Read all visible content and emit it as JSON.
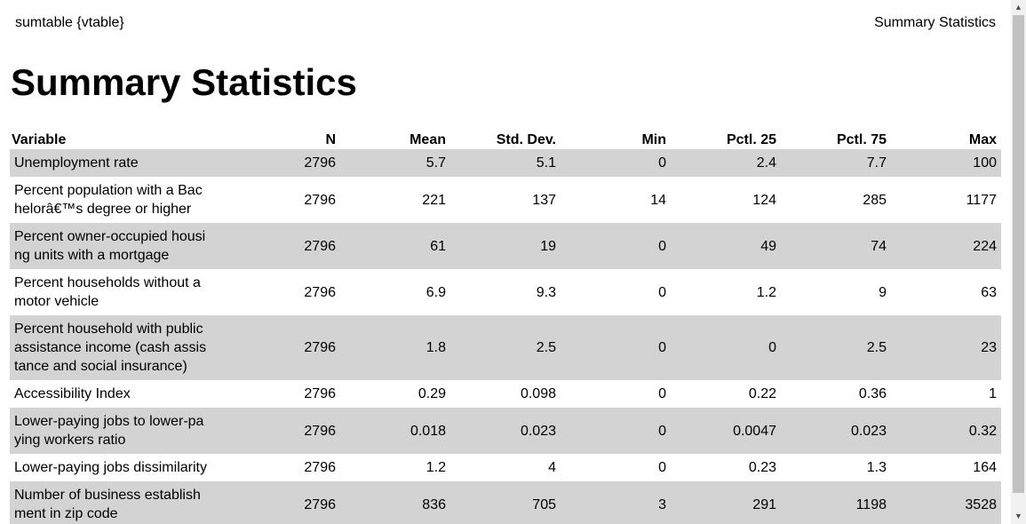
{
  "header": {
    "left_text": "sumtable {vtable}",
    "right_text": "Summary Statistics"
  },
  "page_title": "Summary Statistics",
  "table": {
    "columns": [
      "Variable",
      "N",
      "Mean",
      "Std. Dev.",
      "Min",
      "Pctl. 25",
      "Pctl. 75",
      "Max"
    ],
    "rows": [
      [
        [
          "Unemployment rate"
        ],
        "2796",
        "5.7",
        "5.1",
        "0",
        "2.4",
        "7.7",
        "100"
      ],
      [
        [
          "Percent population with a Bac",
          "helorâ€™s degree or higher"
        ],
        "2796",
        "221",
        "137",
        "14",
        "124",
        "285",
        "1177"
      ],
      [
        [
          "Percent owner-occupied housi",
          "ng units with a mortgage"
        ],
        "2796",
        "61",
        "19",
        "0",
        "49",
        "74",
        "224"
      ],
      [
        [
          "Percent households without a",
          "motor vehicle"
        ],
        "2796",
        "6.9",
        "9.3",
        "0",
        "1.2",
        "9",
        "63"
      ],
      [
        [
          "Percent household with public",
          "assistance income (cash assis",
          "tance and social insurance)"
        ],
        "2796",
        "1.8",
        "2.5",
        "0",
        "0",
        "2.5",
        "23"
      ],
      [
        [
          "Accessibility Index"
        ],
        "2796",
        "0.29",
        "0.098",
        "0",
        "0.22",
        "0.36",
        "1"
      ],
      [
        [
          "Lower-paying jobs to lower-pa",
          "ying workers ratio"
        ],
        "2796",
        "0.018",
        "0.023",
        "0",
        "0.0047",
        "0.023",
        "0.32"
      ],
      [
        [
          "Lower-paying jobs dissimilarity"
        ],
        "2796",
        "1.2",
        "4",
        "0",
        "0.23",
        "1.3",
        "164"
      ],
      [
        [
          "Number of business establish",
          "ment in zip code"
        ],
        "2796",
        "836",
        "705",
        "3",
        "291",
        "1198",
        "3528"
      ]
    ]
  },
  "scrollbar": {
    "up_icon": "▲",
    "down_icon": "▼"
  }
}
